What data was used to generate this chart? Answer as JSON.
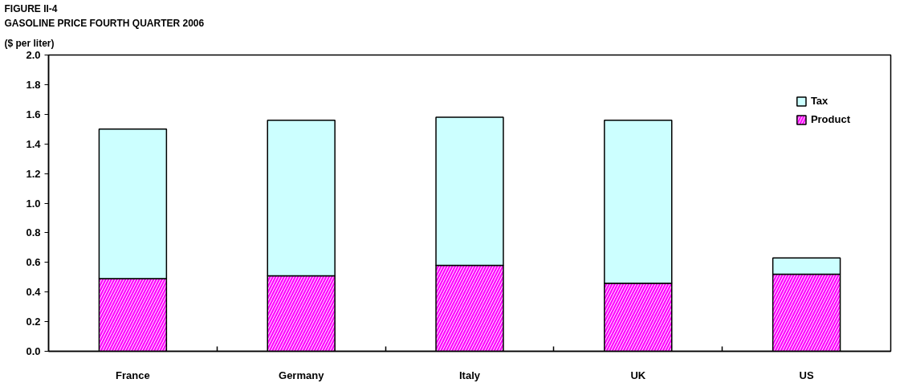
{
  "chart_data": {
    "type": "bar",
    "title": "FIGURE II-4",
    "subtitle": "GASOLINE PRICE FOURTH QUARTER 2006",
    "ylabel": "($ per liter)",
    "categories": [
      "France",
      "Germany",
      "Italy",
      "UK",
      "US"
    ],
    "stacked": true,
    "series": [
      {
        "name": "Product",
        "color": "#ff00ff",
        "values": [
          0.49,
          0.51,
          0.58,
          0.46,
          0.52
        ]
      },
      {
        "name": "Tax",
        "color": "#ccffff",
        "values": [
          1.01,
          1.05,
          1.0,
          1.1,
          0.11
        ]
      }
    ],
    "ylim": [
      0,
      2
    ],
    "yticks": [
      {
        "value": 0,
        "label": "0.0"
      },
      0.2,
      0.4,
      0.6,
      0.8,
      {
        "value": 1,
        "label": "1.0"
      },
      1.2,
      1.4,
      1.6,
      1.8,
      {
        "value": 2,
        "label": "2.0"
      }
    ],
    "grid": false,
    "legend": "top right"
  }
}
